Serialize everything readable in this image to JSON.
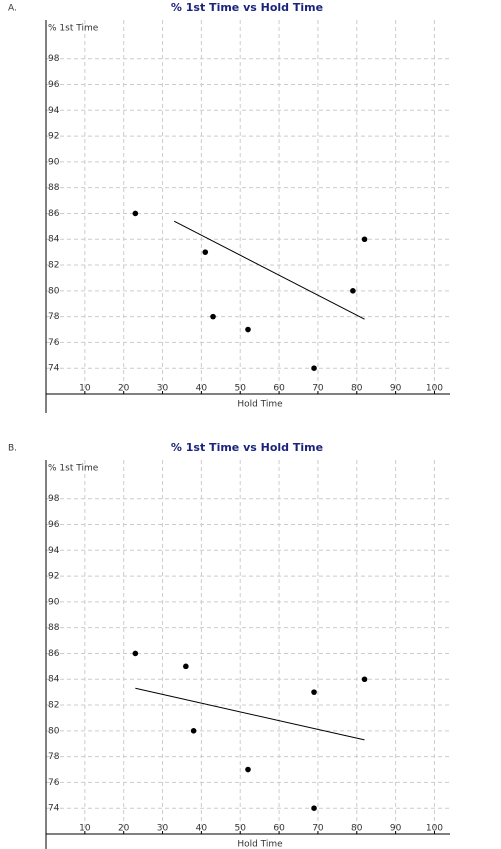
{
  "chart_data": [
    {
      "type": "scatter",
      "panel": "A.",
      "title": "% 1st Time vs Hold Time",
      "y_label": "% 1st Time",
      "x_label": "Hold Time",
      "x": [
        23,
        41,
        43,
        52,
        69,
        79,
        82
      ],
      "values": [
        86,
        83,
        78,
        77,
        74,
        80,
        84
      ],
      "color": "#000000",
      "trend": {
        "x": [
          33,
          82
        ],
        "values": [
          85.4,
          77.8
        ],
        "color": "#000000"
      },
      "xlim": [
        0,
        104
      ],
      "xticks": [
        10,
        20,
        30,
        40,
        50,
        60,
        70,
        80,
        90,
        100
      ],
      "ylim": [
        72,
        101
      ],
      "yticks": [
        74,
        76,
        78,
        80,
        82,
        84,
        86,
        88,
        90,
        92,
        94,
        96,
        98
      ],
      "grid": true
    },
    {
      "type": "scatter",
      "panel": "B.",
      "title": "% 1st Time vs Hold Time",
      "y_label": "% 1st Time",
      "x_label": "Hold Time",
      "x": [
        23,
        36,
        38,
        52,
        69,
        69,
        82
      ],
      "values": [
        86,
        85,
        80,
        77,
        74,
        83,
        84
      ],
      "color": "#000000",
      "trend": {
        "x": [
          23,
          82
        ],
        "values": [
          83.3,
          79.3
        ],
        "color": "#000000"
      },
      "xlim": [
        0,
        104
      ],
      "xticks": [
        10,
        20,
        30,
        40,
        50,
        60,
        70,
        80,
        90,
        100
      ],
      "ylim": [
        72,
        101
      ],
      "yticks": [
        74,
        76,
        78,
        80,
        82,
        84,
        86,
        88,
        90,
        92,
        94,
        96,
        98
      ],
      "grid": true
    }
  ]
}
